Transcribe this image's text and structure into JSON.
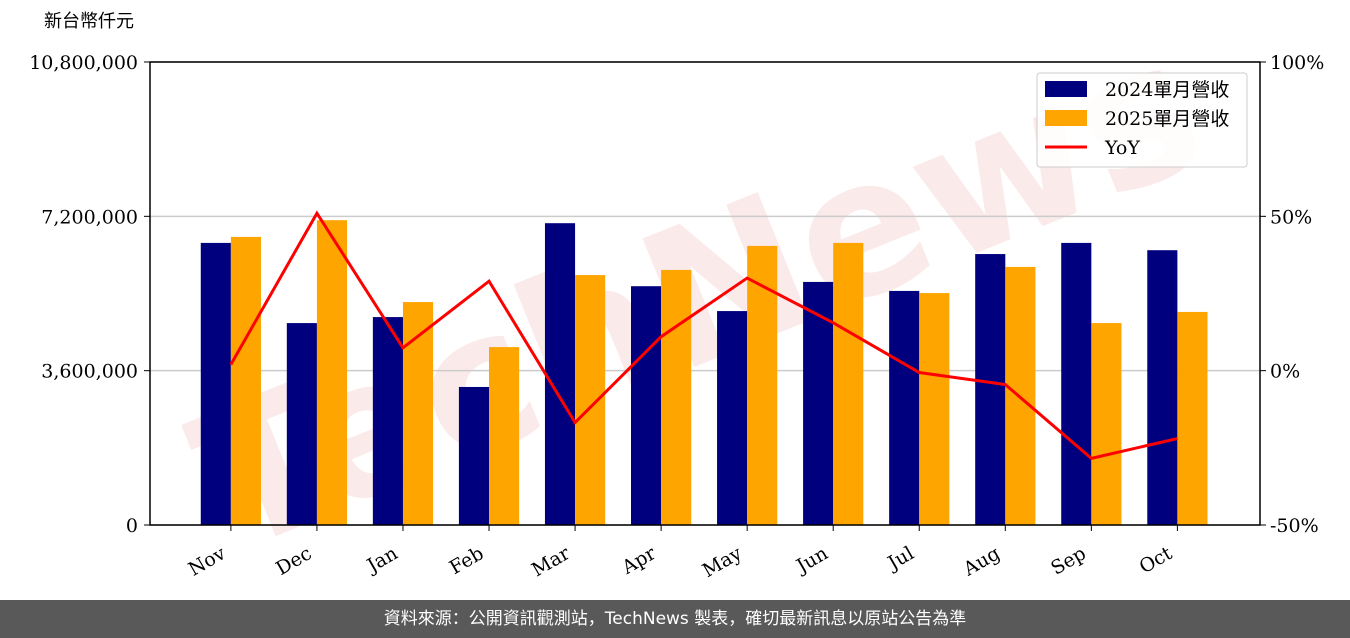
{
  "chart_data": {
    "type": "bar_line",
    "watermark": "TechNews",
    "ylabel": "新台幣仟元",
    "categories": [
      "Nov",
      "Dec",
      "Jan",
      "Feb",
      "Mar",
      "Apr",
      "May",
      "Jun",
      "Jul",
      "Aug",
      "Sep",
      "Oct"
    ],
    "series": [
      {
        "name": "2024單月營收",
        "color": "#00007f",
        "values": [
          6580000,
          4710000,
          4850000,
          3220000,
          7040000,
          5570000,
          4990000,
          5670000,
          5460000,
          6320000,
          6580000,
          6410000
        ]
      },
      {
        "name": "2025單月營收",
        "color": "#ffa500",
        "values": [
          6720000,
          7110000,
          5200000,
          4150000,
          5830000,
          5950000,
          6510000,
          6580000,
          5410000,
          6020000,
          4710000,
          4970000
        ]
      },
      {
        "name": "YoY",
        "type": "line",
        "axis": "y2",
        "color": "#ff0000",
        "values": [
          2,
          51,
          7.4,
          29,
          -16.8,
          11,
          30,
          15.5,
          -0.6,
          -4.5,
          -28.4,
          -22
        ]
      }
    ],
    "ylim": [
      0,
      10800000
    ],
    "yticks": [
      0,
      {
        "value": 3600000,
        "label": "3,600,000"
      },
      {
        "value": 7200000,
        "label": "7,200,000"
      },
      {
        "value": 10800000,
        "label": "10,800,000"
      }
    ],
    "y2lim": [
      -50,
      100
    ],
    "y2ticks": [
      {
        "value": -50,
        "label": "-50%"
      },
      {
        "value": 0,
        "label": "0%"
      },
      {
        "value": 50,
        "label": "50%"
      },
      {
        "value": 100,
        "label": "100%"
      }
    ],
    "grid": true,
    "legend": "upper right",
    "footer": "資料來源：公開資訊觀測站，TechNews 製表，確切最新訊息以原站公告為準"
  }
}
